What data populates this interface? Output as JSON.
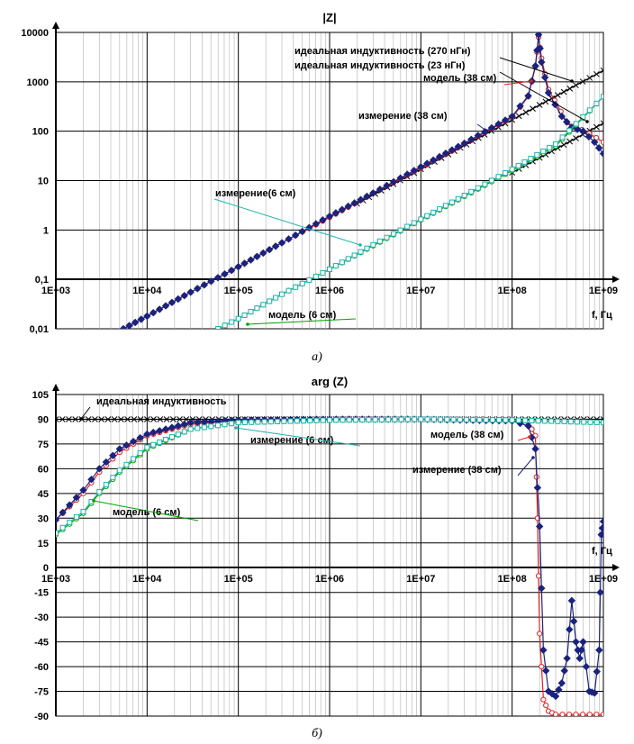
{
  "chart_data": [
    {
      "type": "line",
      "title": "|Z|",
      "xlabel": "f, Гц",
      "ylabel": "",
      "caption": "а)",
      "x_scale": "log",
      "y_scale": "log",
      "xlim": [
        1000,
        1000000000
      ],
      "ylim": [
        0.01,
        10000
      ],
      "grid": true,
      "x_tick_labels": [
        "1E+03",
        "1E+04",
        "1E+05",
        "1E+06",
        "1E+07",
        "1E+08",
        "1E+09"
      ],
      "y_tick_labels": [
        "0,01",
        "0,1",
        "1",
        "10",
        "100",
        "1000",
        "10000"
      ],
      "series": [
        {
          "name": "идеальная индуктивность (270 нГн)",
          "color": "#000000",
          "marker": "x",
          "x": [
            2000000,
            5000000,
            10000000,
            20000000,
            50000000,
            100000000,
            200000000,
            500000000,
            1000000000
          ],
          "y": [
            3.4,
            8.5,
            17,
            34,
            85,
            170,
            340,
            850,
            1700
          ]
        },
        {
          "name": "идеальная индуктивность (23 нГн)",
          "color": "#000000",
          "marker": "x",
          "x": [
            100000000,
            200000000,
            500000000,
            1000000000
          ],
          "y": [
            14.5,
            29,
            72,
            145
          ]
        },
        {
          "name": "модель (38 см)",
          "color": "#e02020",
          "marker": "o",
          "x": [
            5500,
            10000,
            30000,
            100000,
            300000,
            1000000,
            3000000,
            10000000,
            30000000,
            100000000,
            150000000,
            180000000,
            195000000,
            210000000,
            250000000,
            400000000,
            700000000,
            1000000000
          ],
          "y": [
            0.01,
            0.018,
            0.055,
            0.18,
            0.55,
            1.8,
            5.5,
            18,
            55,
            190,
            500,
            2000,
            8000,
            3000,
            700,
            150,
            90,
            60
          ]
        },
        {
          "name": "измерение (38 см)",
          "color": "#1a237e",
          "marker": "diamond",
          "x": [
            5500,
            10000,
            30000,
            100000,
            300000,
            1000000,
            3000000,
            10000000,
            30000000,
            100000000,
            150000000,
            180000000,
            195000000,
            210000000,
            250000000,
            350000000,
            450000000,
            600000000,
            800000000,
            1000000000
          ],
          "y": [
            0.01,
            0.018,
            0.055,
            0.18,
            0.55,
            1.9,
            5.6,
            19,
            57,
            200,
            520,
            2100,
            9000,
            2500,
            600,
            200,
            120,
            100,
            60,
            35
          ]
        },
        {
          "name": "модель (6 см)",
          "color": "#00a000",
          "marker": "o",
          "x": [
            60000,
            100000,
            300000,
            1000000,
            3000000,
            10000000,
            30000000,
            100000000,
            300000000,
            1000000000
          ],
          "y": [
            0.01,
            0.016,
            0.05,
            0.16,
            0.48,
            1.6,
            4.8,
            16,
            50,
            500
          ]
        },
        {
          "name": "измерение(6 см)",
          "color": "#20b2aa",
          "marker": "square",
          "x": [
            60000,
            100000,
            300000,
            1000000,
            3000000,
            10000000,
            30000000,
            100000000,
            300000000,
            1000000000
          ],
          "y": [
            0.01,
            0.016,
            0.05,
            0.16,
            0.5,
            1.65,
            5,
            17,
            55,
            500
          ]
        }
      ],
      "annotations": [
        "идеальная индуктивность  (270 нГн)",
        "идеальная индуктивность  (23 нГн)",
        "модель  (38 см)",
        "измерение  (38 см)",
        "измерение(6 см)",
        "модель (6 см)"
      ]
    },
    {
      "type": "line",
      "title": "arg (Z)",
      "xlabel": "f, Гц",
      "ylabel": "",
      "caption": "б)",
      "x_scale": "log",
      "y_scale": "linear",
      "xlim": [
        1000,
        1000000000
      ],
      "ylim": [
        -90,
        105
      ],
      "grid": true,
      "x_tick_labels": [
        "1E+03",
        "1E+04",
        "1E+05",
        "1E+06",
        "1E+07",
        "1E+08",
        "1E+09"
      ],
      "y_tick_labels": [
        "-90",
        "-75",
        "-60",
        "-45",
        "-30",
        "-15",
        "0",
        "15",
        "30",
        "45",
        "60",
        "75",
        "90",
        "105"
      ],
      "series": [
        {
          "name": "идеальная индуктивность",
          "color": "#000000",
          "marker": "x",
          "x": [
            1000,
            1000000000
          ],
          "y": [
            90,
            90
          ]
        },
        {
          "name": "модель (38 см)",
          "color": "#e02020",
          "marker": "o",
          "x": [
            1000,
            2000,
            3000,
            5000,
            10000,
            30000,
            100000,
            1000000,
            10000000,
            100000000,
            150000000,
            180000000,
            190000000,
            200000000,
            220000000,
            250000000,
            300000000,
            500000000,
            1000000000
          ],
          "y": [
            29,
            45,
            58,
            70,
            80,
            87,
            89,
            90,
            90,
            89,
            88,
            80,
            30,
            -40,
            -80,
            -87,
            -89,
            -89,
            -89
          ]
        },
        {
          "name": "измерение (38 см)",
          "color": "#1a237e",
          "marker": "diamond",
          "x": [
            1000,
            2000,
            3000,
            5000,
            10000,
            30000,
            100000,
            1000000,
            10000000,
            100000000,
            150000000,
            180000000,
            200000000,
            220000000,
            250000000,
            300000000,
            350000000,
            400000000,
            450000000,
            500000000,
            550000000,
            600000000,
            700000000,
            800000000,
            900000000,
            950000000,
            1000000000
          ],
          "y": [
            29,
            47,
            60,
            72,
            81,
            88,
            89.5,
            90,
            90,
            89,
            86,
            72,
            25,
            -50,
            -75,
            -78,
            -70,
            -55,
            -20,
            -45,
            -55,
            -45,
            -75,
            -76,
            -50,
            20,
            28
          ]
        },
        {
          "name": "модель (6 см)",
          "color": "#00a000",
          "marker": "o",
          "x": [
            1000,
            2000,
            3000,
            5000,
            10000,
            30000,
            100000,
            1000000,
            10000000,
            100000000,
            1000000000
          ],
          "y": [
            20,
            33,
            45,
            58,
            72,
            84,
            88,
            89.5,
            90,
            89.5,
            88
          ]
        },
        {
          "name": "измерение (6 см)",
          "color": "#20b2aa",
          "marker": "square",
          "x": [
            1000,
            2000,
            3000,
            5000,
            10000,
            30000,
            100000,
            1000000,
            10000000,
            100000000,
            1000000000
          ],
          "y": [
            21,
            34,
            46,
            59,
            73,
            84,
            88,
            89.5,
            90,
            89.5,
            88
          ]
        }
      ],
      "annotations": [
        "идеальная индуктивность",
        "измерение (6 см)",
        "модель  (38 см)",
        "измерение (38 см)",
        "модель (6 см)"
      ]
    }
  ]
}
